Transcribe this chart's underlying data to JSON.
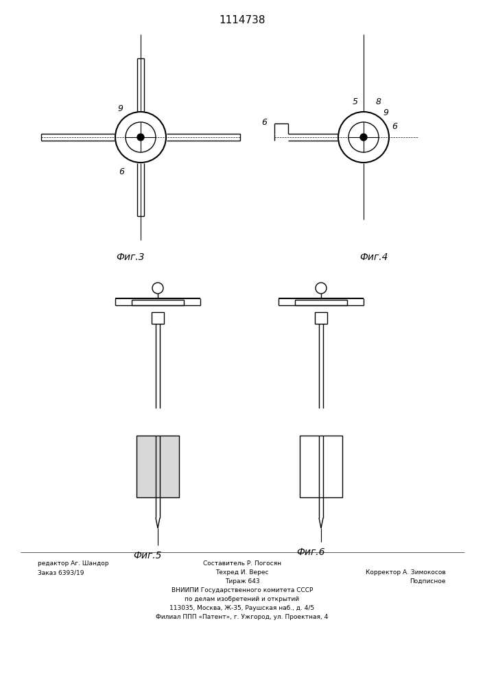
{
  "title": "1114738",
  "bg_color": "#ffffff",
  "line_color": "#000000",
  "fig3_label": "Фиг.3",
  "fig4_label": "Фиг.4",
  "fig5_label": "Фиг.5",
  "fig6_label": "Фиг.6",
  "footer_left1": "редактор Аг. Шандор",
  "footer_left2": "Заказ 6393/19",
  "footer_center1": "Составитель Р. Погосян",
  "footer_center2": "Техред И. Верес",
  "footer_center3": "Тираж 643",
  "footer_center4": "ВНИИПИ Государственного комитета СССР",
  "footer_center5": "по делам изобретений и открытий",
  "footer_center6": "113035, Москва, Ж-35, Раушская наб., д. 4/5",
  "footer_center7": "Филиал ППП «Патент», г. Ужгород, ул. Проектная, 4",
  "footer_right1": "Корректор А. Зимокосов",
  "footer_right2": "Подписное"
}
